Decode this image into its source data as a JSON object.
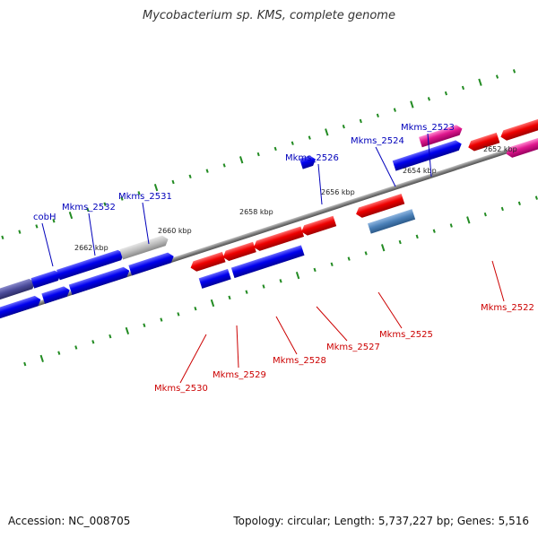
{
  "header": {
    "title": "Mycobacterium sp. KMS, complete genome"
  },
  "footer": {
    "accession": "Accession: NC_008705",
    "topology": "Topology: circular; Length: 5,737,227 bp; Genes: 5,516"
  },
  "colors": {
    "forward_gene": "#0000ee",
    "reverse_gene": "#ee0000",
    "backbone": "#808080",
    "tick": "#228b22",
    "label_forward": "#0000bb",
    "label_reverse": "#cc0000"
  },
  "ruler": {
    "labels": [
      "2662 kbp",
      "2660 kbp",
      "2658 kbp",
      "2656 kbp",
      "2654 kbp",
      "2652 kbp"
    ]
  },
  "gene_labels": {
    "cobH": "cobH",
    "Mkms_2532": "Mkms_2532",
    "Mkms_2531": "Mkms_2531",
    "Mkms_2526": "Mkms_2526",
    "Mkms_2524": "Mkms_2524",
    "Mkms_2523": "Mkms_2523",
    "Mkms_2522": "Mkms_2522",
    "Mkms_2525": "Mkms_2525",
    "Mkms_2527": "Mkms_2527",
    "Mkms_2528": "Mkms_2528",
    "Mkms_2529": "Mkms_2529",
    "Mkms_2530": "Mkms_2530"
  }
}
